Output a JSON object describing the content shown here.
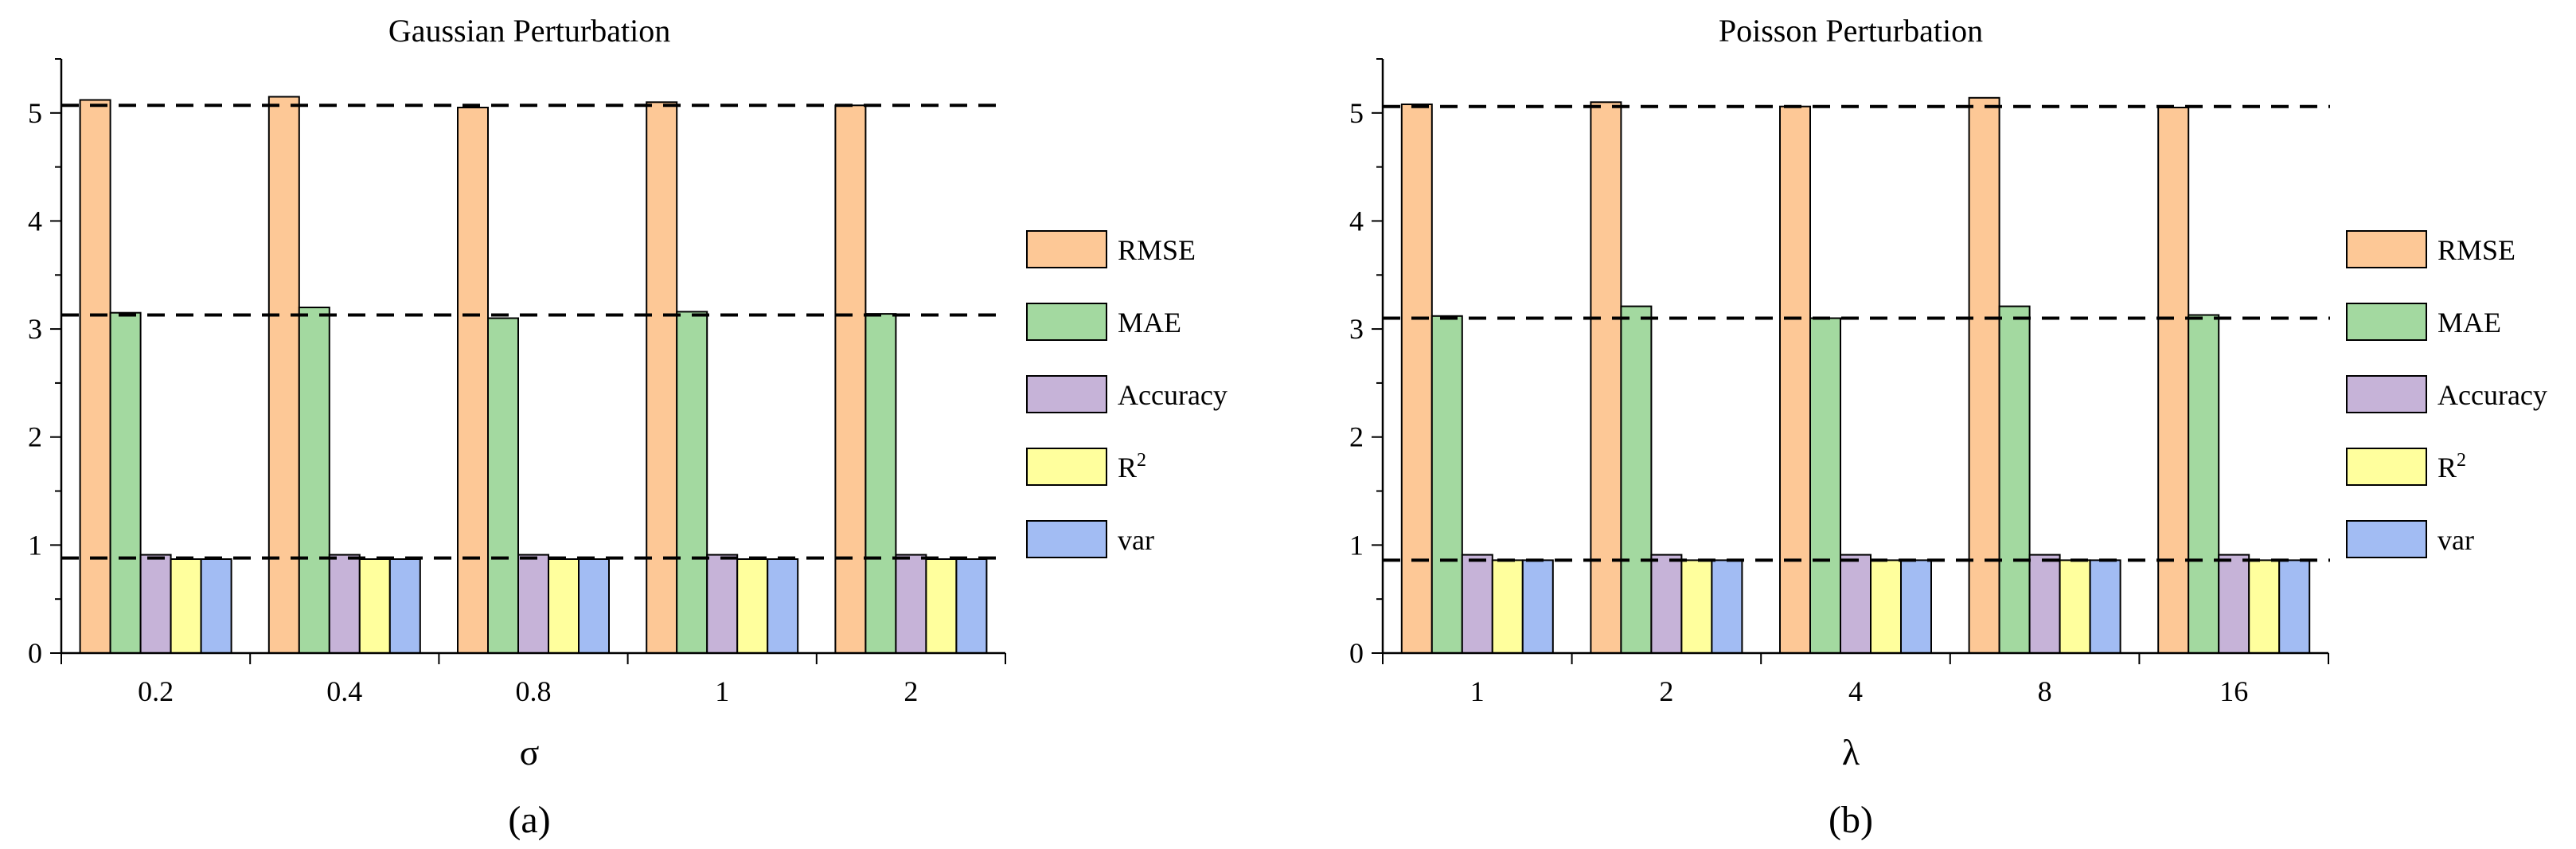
{
  "colors": {
    "RMSE": "#FDC896",
    "MAE": "#A3D9A0",
    "Accuracy": "#C6B3D8",
    "R2": "#FFFF9D",
    "var": "#A2BCF3",
    "axis": "#000000",
    "refline": "#000000"
  },
  "chart_data": [
    {
      "type": "bar",
      "panel_label": "(a)",
      "title": "Gaussian Perturbation",
      "xlabel": "σ",
      "ylabel": "",
      "categories": [
        "0.2",
        "0.4",
        "0.8",
        "1",
        "2"
      ],
      "ylim": [
        0,
        5.5
      ],
      "yticks": [
        0,
        1,
        2,
        3,
        4,
        5
      ],
      "grid": false,
      "legend": "right",
      "series": [
        {
          "name": "RMSE",
          "values": [
            5.12,
            5.15,
            5.05,
            5.1,
            5.07
          ]
        },
        {
          "name": "MAE",
          "values": [
            3.15,
            3.2,
            3.1,
            3.16,
            3.14
          ]
        },
        {
          "name": "Accuracy",
          "values": [
            0.91,
            0.91,
            0.91,
            0.91,
            0.91
          ]
        },
        {
          "name": "R2",
          "values": [
            0.87,
            0.87,
            0.87,
            0.87,
            0.87
          ]
        },
        {
          "name": "var",
          "values": [
            0.87,
            0.87,
            0.87,
            0.87,
            0.87
          ]
        }
      ],
      "reference_lines": [
        5.07,
        3.13,
        0.88
      ]
    },
    {
      "type": "bar",
      "panel_label": "(b)",
      "title": "Poisson Perturbation",
      "xlabel": "λ",
      "ylabel": "",
      "categories": [
        "1",
        "2",
        "4",
        "8",
        "16"
      ],
      "ylim": [
        0,
        5.5
      ],
      "yticks": [
        0,
        1,
        2,
        3,
        4,
        5
      ],
      "grid": false,
      "legend": "right",
      "series": [
        {
          "name": "RMSE",
          "values": [
            5.08,
            5.1,
            5.06,
            5.14,
            5.05
          ]
        },
        {
          "name": "MAE",
          "values": [
            3.12,
            3.21,
            3.1,
            3.21,
            3.13
          ]
        },
        {
          "name": "Accuracy",
          "values": [
            0.91,
            0.91,
            0.91,
            0.91,
            0.91
          ]
        },
        {
          "name": "R2",
          "values": [
            0.86,
            0.86,
            0.86,
            0.86,
            0.86
          ]
        },
        {
          "name": "var",
          "values": [
            0.86,
            0.86,
            0.86,
            0.86,
            0.86
          ]
        }
      ],
      "reference_lines": [
        5.06,
        3.1,
        0.86
      ]
    }
  ]
}
